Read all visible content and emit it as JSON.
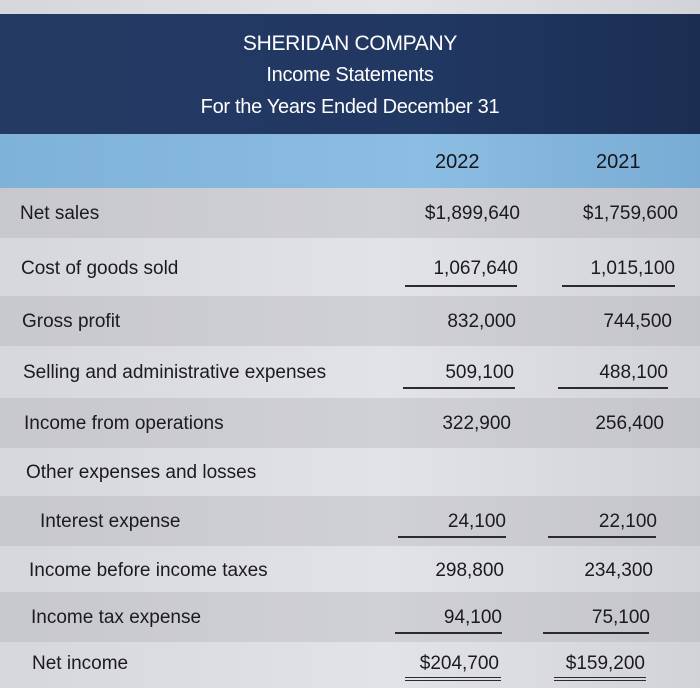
{
  "header": {
    "company": "SHERIDAN COMPANY",
    "statement": "Income Statements",
    "period": "For the Years Ended December 31"
  },
  "columns": [
    "2022",
    "2021"
  ],
  "rows": [
    {
      "label": "Net sales",
      "v2022": "$1,899,640",
      "v2021": "$1,759,600"
    },
    {
      "label": "Cost of goods sold",
      "v2022": "1,067,640",
      "v2021": "1,015,100"
    },
    {
      "label": "Gross profit",
      "v2022": "832,000",
      "v2021": "744,500"
    },
    {
      "label": "Selling and administrative expenses",
      "v2022": "509,100",
      "v2021": "488,100"
    },
    {
      "label": "Income from operations",
      "v2022": "322,900",
      "v2021": "256,400"
    },
    {
      "label": "Other expenses and losses",
      "v2022": "",
      "v2021": ""
    },
    {
      "label": "Interest expense",
      "v2022": "24,100",
      "v2021": "22,100"
    },
    {
      "label": "Income before income taxes",
      "v2022": "298,800",
      "v2021": "234,300"
    },
    {
      "label": "Income tax expense",
      "v2022": "94,100",
      "v2021": "75,100"
    },
    {
      "label": "Net income",
      "v2022": "$204,700",
      "v2021": "$159,200"
    }
  ]
}
